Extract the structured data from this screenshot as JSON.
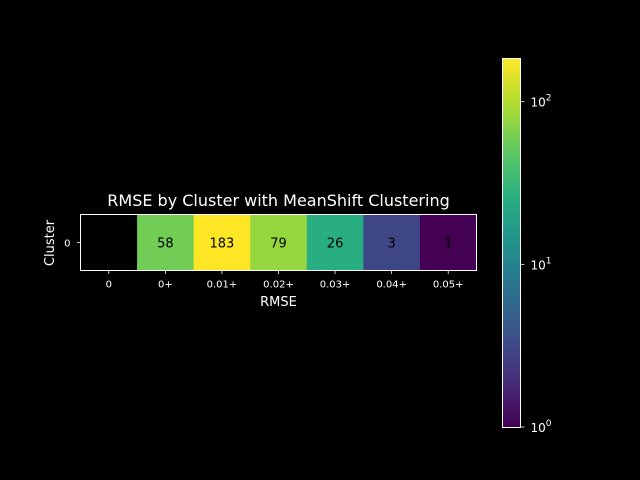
{
  "chart_data": {
    "type": "heatmap",
    "title": "RMSE by Cluster with MeanShift Clustering",
    "xlabel": "RMSE",
    "ylabel": "Cluster",
    "x_categories": [
      "0",
      "0+",
      "0.01+",
      "0.02+",
      "0.03+",
      "0.04+",
      "0.05+"
    ],
    "y_categories": [
      "0"
    ],
    "values": [
      [
        null,
        58,
        183,
        79,
        26,
        3,
        1
      ]
    ],
    "cell_labels": [
      [
        "",
        "58",
        "183",
        "79",
        "26",
        "3",
        "1"
      ]
    ],
    "colorbar": {
      "scale": "log",
      "range": [
        1,
        183
      ],
      "colormap": "viridis",
      "ticks": [
        {
          "value": 1,
          "base": "10",
          "exp": "0"
        },
        {
          "value": 10,
          "base": "10",
          "exp": "1"
        },
        {
          "value": 100,
          "base": "10",
          "exp": "2"
        }
      ]
    }
  }
}
